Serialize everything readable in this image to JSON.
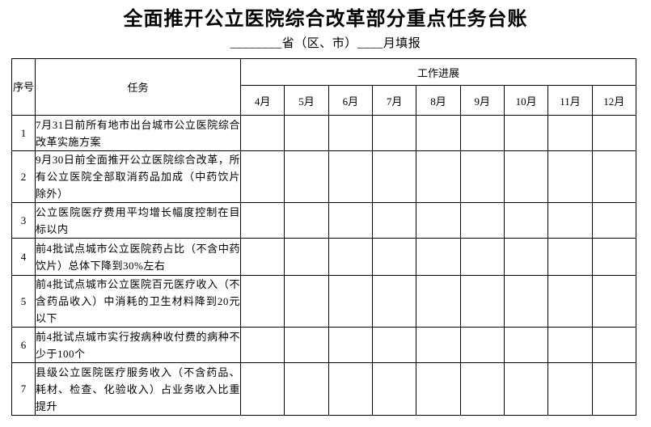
{
  "title": "全面推开公立医院综合改革部分重点任务台账",
  "subtitle": "________省（区、市）____月填报",
  "table": {
    "headers": {
      "index": "序号",
      "task": "任务",
      "progress": "工作进展",
      "months": [
        "4月",
        "5月",
        "6月",
        "7月",
        "8月",
        "9月",
        "10月",
        "11月",
        "12月"
      ]
    },
    "rows": [
      {
        "index": "1",
        "task": "7月31日前所有地市出台城市公立医院综合改革实施方案"
      },
      {
        "index": "2",
        "task": "9月30日前全面推开公立医院综合改革，所有公立医院全部取消药品加成（中药饮片除外）"
      },
      {
        "index": "3",
        "task": "公立医院医疗费用平均增长幅度控制在目标以内"
      },
      {
        "index": "4",
        "task": "前4批试点城市公立医院药占比（不含中药饮片）总体下降到30%左右"
      },
      {
        "index": "5",
        "task": "前4批试点城市公立医院百元医疗收入（不含药品收入）中消耗的卫生材料降到20元以下"
      },
      {
        "index": "6",
        "task": "前4批试点城市实行按病种收付费的病种不少于100个"
      },
      {
        "index": "7",
        "task": "县级公立医院医疗服务收入（不含药品、耗材、检查、化验收入）占业务收入比重提升"
      }
    ]
  },
  "colors": {
    "text": "#000000",
    "border": "#000000",
    "background": "#ffffff"
  }
}
